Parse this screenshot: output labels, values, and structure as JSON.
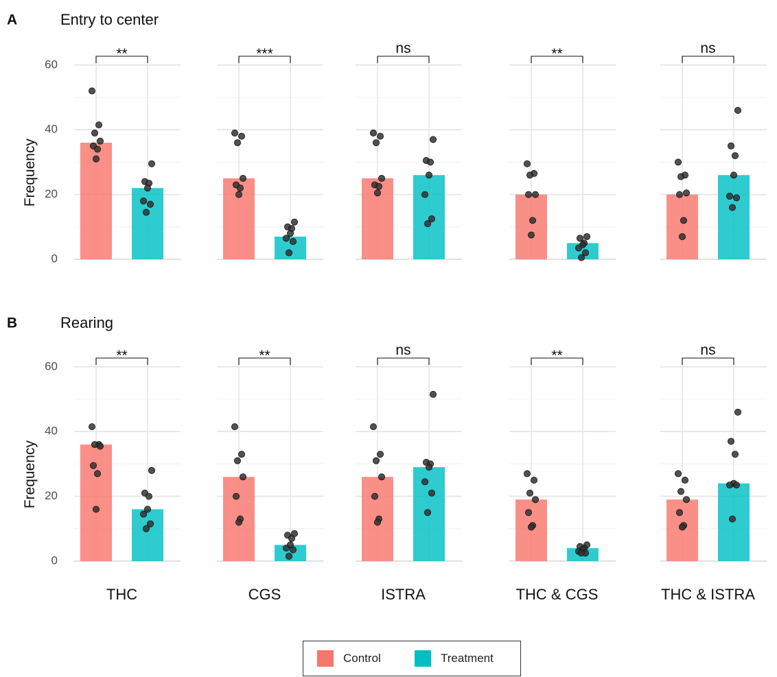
{
  "legend": {
    "items": [
      {
        "label": "Control",
        "color": "#F8766D"
      },
      {
        "label": "Treatment",
        "color": "#00BFC4"
      }
    ]
  },
  "chart_data": [
    {
      "type": "bar",
      "panel_label": "A",
      "title": "Entry to center",
      "ylabel": "Frequency",
      "ylim": [
        0,
        62
      ],
      "yticks": [
        0,
        20,
        40,
        60
      ],
      "grid": true,
      "series_names": [
        "Control",
        "Treatment"
      ],
      "groups": [
        {
          "name": "THC",
          "control": 36,
          "treatment": 22,
          "significance": "**",
          "control_points": [
            52,
            41.5,
            39,
            36.5,
            35,
            34,
            31
          ],
          "treatment_points": [
            29.5,
            24,
            23.5,
            22,
            18,
            17,
            14.5
          ]
        },
        {
          "name": "CGS",
          "control": 25,
          "treatment": 7,
          "significance": "***",
          "control_points": [
            39,
            38,
            36,
            25,
            23,
            22,
            20
          ],
          "treatment_points": [
            11.5,
            10,
            9.5,
            8,
            6.5,
            5.5,
            2
          ]
        },
        {
          "name": "ISTRA",
          "control": 25,
          "treatment": 26,
          "significance": "ns",
          "control_points": [
            39,
            38,
            36,
            25,
            23,
            22.5,
            20.5
          ],
          "treatment_points": [
            37,
            30.5,
            30,
            26,
            20,
            12.5,
            11
          ]
        },
        {
          "name": "THC & CGS",
          "control": 20,
          "treatment": 5,
          "significance": "**",
          "control_points": [
            29.5,
            26.5,
            26,
            20,
            20,
            12,
            7.5
          ],
          "treatment_points": [
            7,
            6.5,
            5,
            4.5,
            3.5,
            2,
            0.5
          ]
        },
        {
          "name": "THC & ISTRA",
          "control": 20,
          "treatment": 26,
          "significance": "ns",
          "control_points": [
            30,
            26,
            25.5,
            20.5,
            20,
            12,
            7
          ],
          "treatment_points": [
            46,
            35,
            32,
            26,
            19.5,
            19,
            16
          ]
        }
      ]
    },
    {
      "type": "bar",
      "panel_label": "B",
      "title": "Rearing",
      "ylabel": "Frequency",
      "ylim": [
        0,
        62
      ],
      "yticks": [
        0,
        20,
        40,
        60
      ],
      "grid": true,
      "series_names": [
        "Control",
        "Treatment"
      ],
      "groups": [
        {
          "name": "THC",
          "control": 36,
          "treatment": 16,
          "significance": "**",
          "control_points": [
            41.5,
            36,
            36,
            35.5,
            29.5,
            27,
            16
          ],
          "treatment_points": [
            28,
            21,
            20,
            16,
            14.5,
            11.5,
            10
          ]
        },
        {
          "name": "CGS",
          "control": 26,
          "treatment": 5,
          "significance": "**",
          "control_points": [
            41.5,
            33,
            31,
            26,
            20,
            13,
            12
          ],
          "treatment_points": [
            8.5,
            8,
            7,
            5,
            4,
            3.5,
            1.5
          ]
        },
        {
          "name": "ISTRA",
          "control": 26,
          "treatment": 29,
          "significance": "ns",
          "control_points": [
            41.5,
            33,
            31,
            26,
            20,
            13,
            12
          ],
          "treatment_points": [
            51.5,
            30.5,
            30,
            29,
            24.5,
            21,
            15
          ]
        },
        {
          "name": "THC & CGS",
          "control": 19,
          "treatment": 4,
          "significance": "**",
          "control_points": [
            27,
            25,
            21,
            19,
            15,
            11,
            10.5
          ],
          "treatment_points": [
            5,
            4.5,
            4,
            3.5,
            3,
            2.5,
            2.5
          ]
        },
        {
          "name": "THC & ISTRA",
          "control": 19,
          "treatment": 24,
          "significance": "ns",
          "control_points": [
            27,
            25,
            21.5,
            19,
            15,
            11,
            10.5
          ],
          "treatment_points": [
            46,
            37,
            33,
            24,
            23.5,
            23.5,
            13
          ]
        }
      ]
    }
  ]
}
